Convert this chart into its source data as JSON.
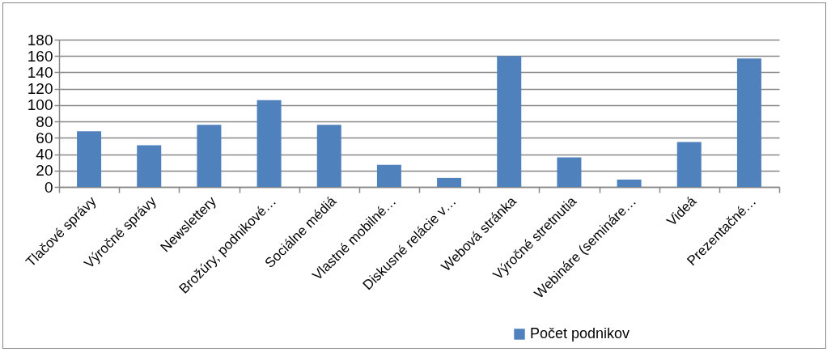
{
  "chart_data": {
    "type": "bar",
    "categories": [
      "Tlačové správy",
      "Výročné správy",
      "Newslettery",
      "Brožúry, podnikové…",
      "Sociálne médiá",
      "Vlastné mobilné…",
      "Diskusné relácie v…",
      "Webová stránka",
      "Výročné stretnutia",
      "Webináre (semináre…",
      "Videá",
      "Prezentačné…"
    ],
    "series": [
      {
        "name": "Počet podnikov",
        "color": "#4f81bd",
        "values": [
          68,
          51,
          76,
          106,
          76,
          27,
          11,
          160,
          36,
          9,
          55,
          157
        ]
      }
    ],
    "ylim": [
      0,
      180
    ],
    "yticks": [
      0,
      20,
      40,
      60,
      80,
      100,
      120,
      140,
      160,
      180
    ],
    "grid": "y",
    "legend": "bottom"
  }
}
